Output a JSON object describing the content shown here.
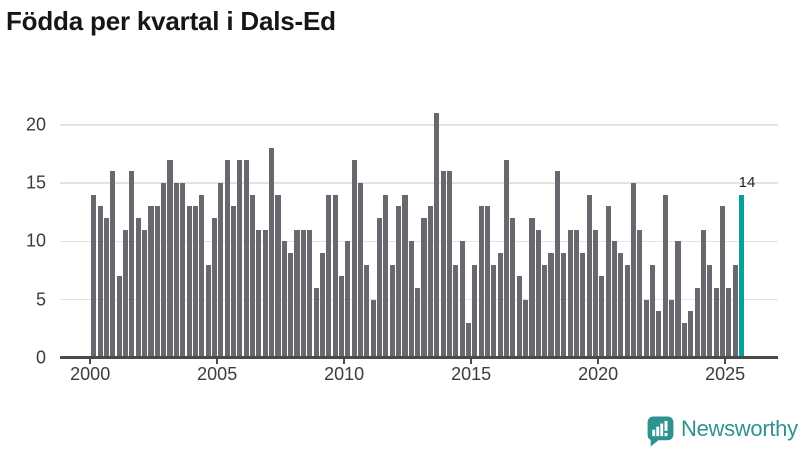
{
  "title": "Födda per kvartal i Dals-Ed",
  "colors": {
    "bar": "#68686e",
    "highlight": "#0a9f9b",
    "grid": "#e3e3e3",
    "axis": "#4a4a4a",
    "tick_text": "#3c3c3c",
    "title_text": "#161616",
    "brand": "#2e9390"
  },
  "chart_data": {
    "type": "bar",
    "title": "Födda per kvartal i Dals-Ed",
    "xlabel": "",
    "ylabel": "",
    "x_start": "2000-Q1",
    "x_end": "2025-Q3",
    "quarters_per_year": 4,
    "start_year": 2000,
    "x_tick_years": [
      2000,
      2005,
      2010,
      2015,
      2020,
      2025
    ],
    "x_tick_labels": [
      "2000",
      "2005",
      "2010",
      "2015",
      "2020",
      "2025"
    ],
    "y_ticks": [
      0,
      5,
      10,
      15,
      20
    ],
    "y_tick_labels": [
      "0",
      "5",
      "10",
      "15",
      "20"
    ],
    "ylim": [
      0,
      21.5
    ],
    "grid": "horizontal",
    "legend": "none",
    "series": [
      {
        "name": "Födda per kvartal",
        "values": [
          14,
          13,
          12,
          16,
          7,
          11,
          16,
          12,
          11,
          13,
          13,
          15,
          17,
          15,
          15,
          13,
          13,
          14,
          8,
          12,
          15,
          17,
          13,
          17,
          17,
          14,
          11,
          11,
          18,
          14,
          10,
          9,
          11,
          11,
          11,
          6,
          9,
          14,
          14,
          7,
          10,
          17,
          15,
          8,
          5,
          12,
          14,
          8,
          13,
          14,
          10,
          6,
          12,
          13,
          21,
          16,
          16,
          8,
          10,
          3,
          8,
          13,
          13,
          8,
          9,
          17,
          12,
          7,
          5,
          12,
          11,
          8,
          9,
          16,
          9,
          11,
          11,
          9,
          14,
          11,
          7,
          13,
          10,
          9,
          8,
          15,
          11,
          5,
          8,
          4,
          14,
          5,
          10,
          3,
          4,
          6,
          11,
          8,
          6,
          13,
          6,
          8,
          14
        ]
      }
    ],
    "highlight_last_bar": true,
    "annotation": {
      "label": "14",
      "value": 14,
      "quarter": "2025-Q3"
    }
  },
  "footer": {
    "brand": "Newsworthy"
  }
}
